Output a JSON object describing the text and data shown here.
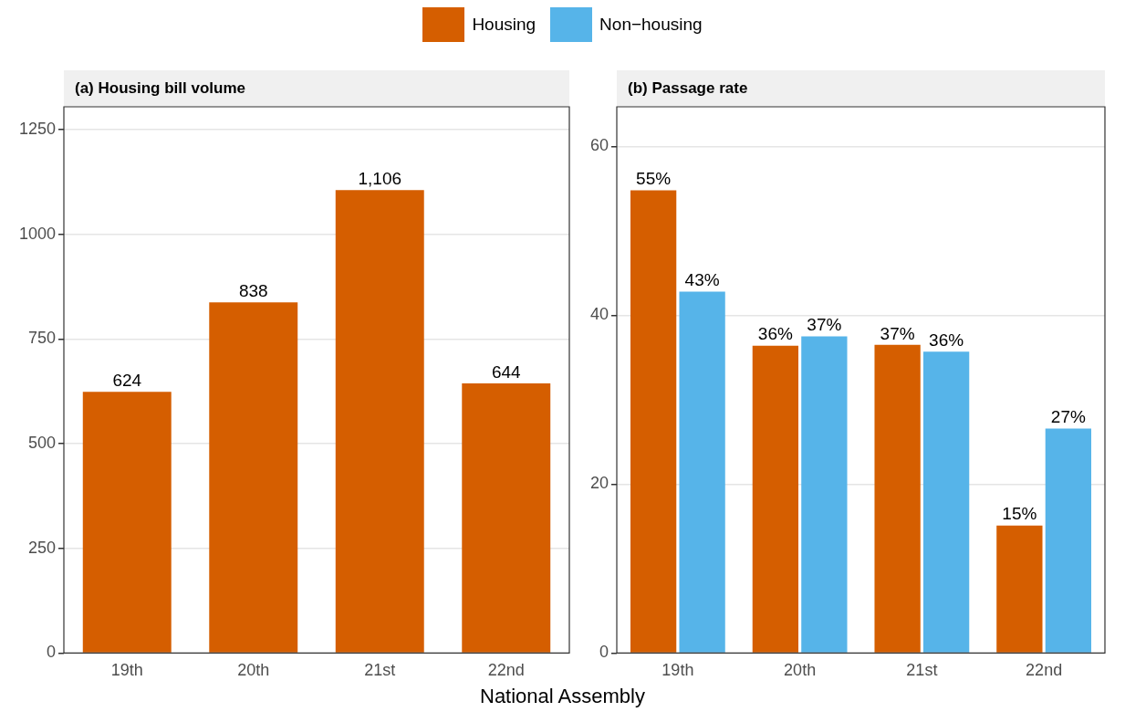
{
  "chart_data": [
    {
      "type": "bar",
      "title": "(a) Housing bill volume",
      "xlabel": "National Assembly",
      "categories": [
        "19th",
        "20th",
        "21st",
        "22nd"
      ],
      "series": [
        {
          "color": "#d55e00",
          "values": [
            624,
            838,
            1106,
            644
          ],
          "value_labels": [
            "624",
            "838",
            "1,106",
            "644"
          ]
        }
      ],
      "ylim": [
        0,
        1305
      ],
      "yticks": [
        0,
        250,
        500,
        750,
        1000,
        1250
      ],
      "grid": "y"
    },
    {
      "type": "bar",
      "title": "(b) Passage rate",
      "categories": [
        "19th",
        "20th",
        "21st",
        "22nd"
      ],
      "series": [
        {
          "name": "Housing",
          "color": "#d55e00",
          "values": [
            54.8,
            36.4,
            36.5,
            15.1
          ],
          "value_labels": [
            "55%",
            "36%",
            "37%",
            "15%"
          ]
        },
        {
          "name": "Non−housing",
          "color": "#56b4e9",
          "values": [
            42.8,
            37.5,
            35.7,
            26.6
          ],
          "value_labels": [
            "43%",
            "37%",
            "36%",
            "27%"
          ]
        }
      ],
      "ylim": [
        0,
        64.7
      ],
      "yticks": [
        0,
        20,
        40,
        60
      ],
      "grid": "y",
      "legend": "top"
    }
  ]
}
